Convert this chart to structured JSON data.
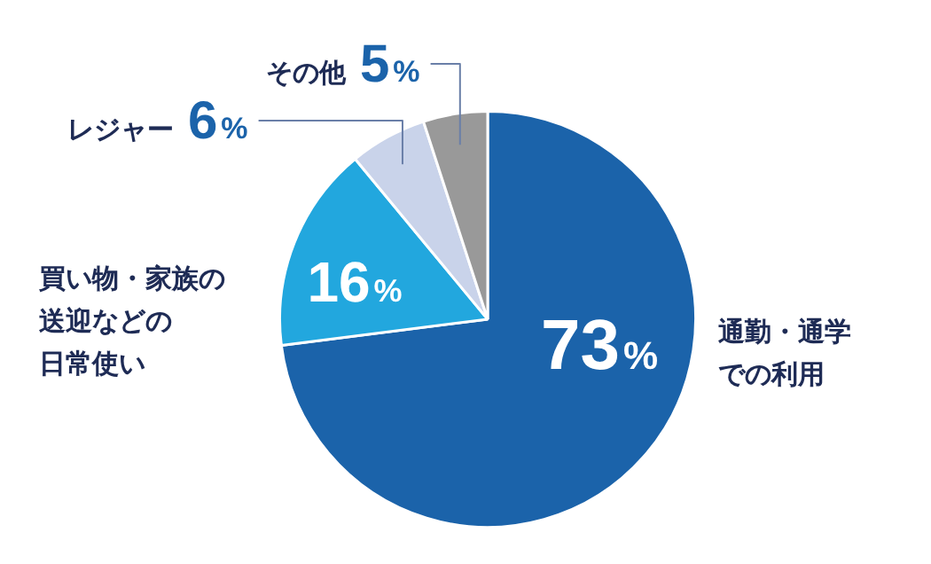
{
  "chart_data": {
    "type": "pie",
    "categories": [
      "通勤・通学での利用",
      "買い物・家族の送迎などの日常使い",
      "レジャー",
      "その他"
    ],
    "values": [
      73,
      16,
      6,
      5
    ],
    "colors": [
      "#1b63aa",
      "#22a7de",
      "#c9d3ea",
      "#999999"
    ],
    "value_labels": [
      "73%",
      "16%",
      "6%",
      "5%"
    ],
    "legend": false
  }
}
